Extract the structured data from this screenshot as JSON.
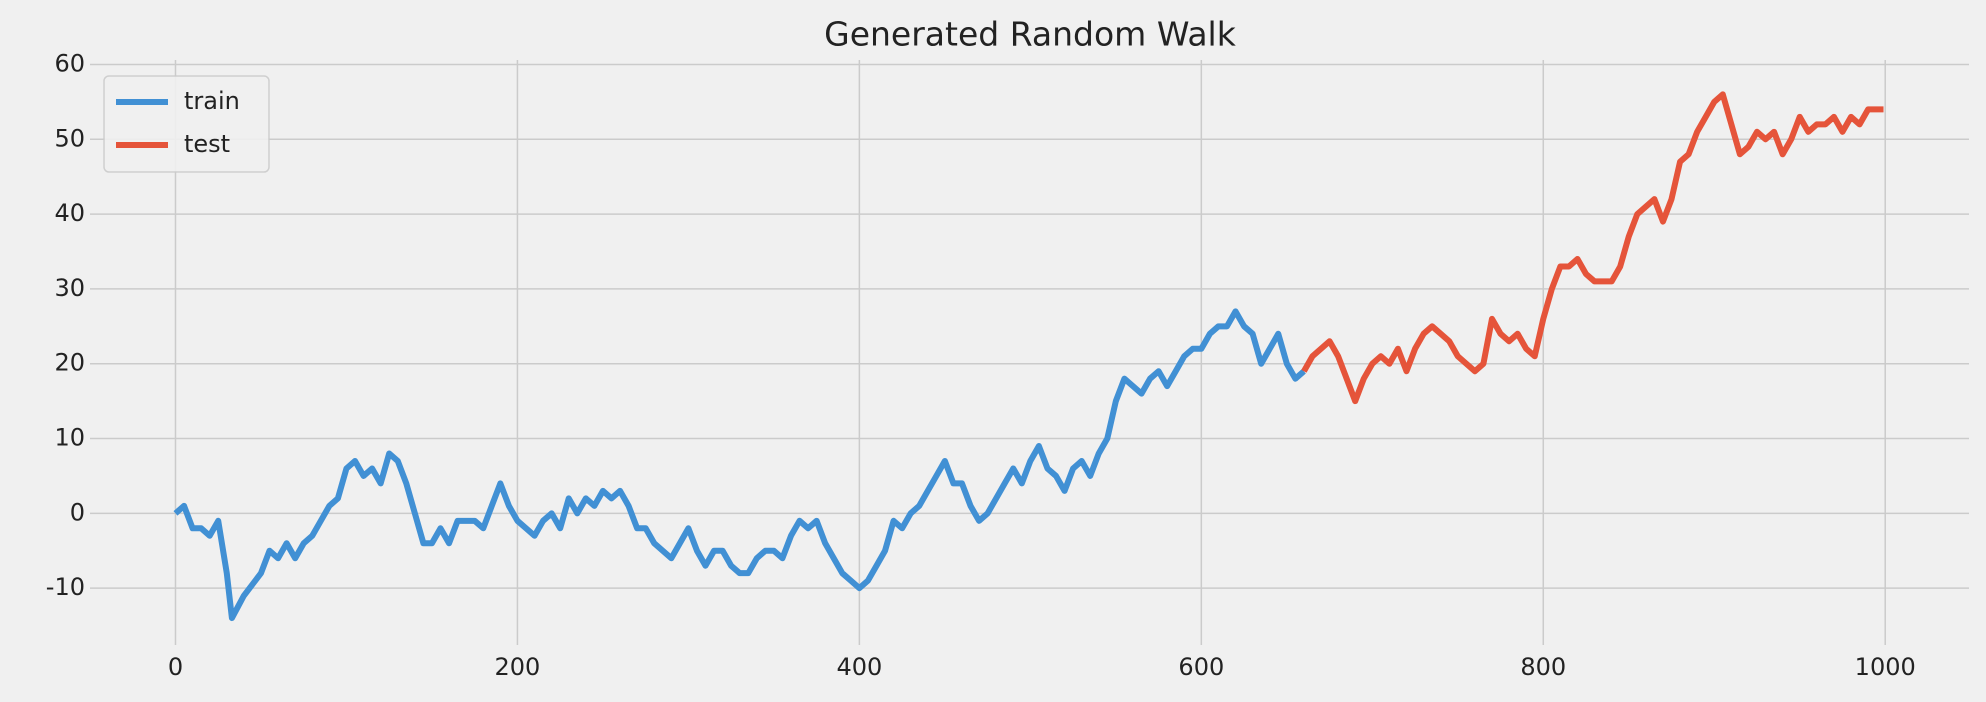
{
  "chart_data": {
    "type": "line",
    "title": "Generated Random Walk",
    "xlim": [
      -50,
      1049
    ],
    "xticks": [
      0,
      200,
      400,
      600,
      800,
      1000
    ],
    "ylim": [
      -17.6,
      60.6
    ],
    "yticks": [
      -10,
      0,
      10,
      20,
      30,
      40,
      50,
      60
    ],
    "grid": true,
    "legend": "upper left",
    "series": [
      {
        "name": "train",
        "color": "#4190d4",
        "x": [
          0,
          5,
          10,
          15,
          20,
          25,
          30,
          33,
          40,
          50,
          55,
          60,
          65,
          70,
          75,
          80,
          85,
          90,
          95,
          100,
          105,
          110,
          115,
          120,
          125,
          130,
          135,
          140,
          145,
          150,
          155,
          160,
          165,
          170,
          175,
          180,
          185,
          190,
          195,
          200,
          205,
          210,
          215,
          220,
          225,
          230,
          235,
          240,
          245,
          250,
          255,
          260,
          265,
          270,
          275,
          280,
          285,
          290,
          295,
          300,
          305,
          310,
          315,
          320,
          325,
          330,
          335,
          340,
          345,
          350,
          355,
          360,
          365,
          370,
          375,
          380,
          385,
          390,
          395,
          400,
          405,
          410,
          415,
          420,
          425,
          430,
          435,
          440,
          445,
          450,
          455,
          460,
          465,
          470,
          475,
          480,
          485,
          490,
          495,
          500,
          505,
          510,
          515,
          520,
          525,
          530,
          535,
          540,
          545,
          550,
          555,
          560,
          565,
          570,
          575,
          580,
          585,
          590,
          595,
          600,
          605,
          610,
          615,
          620,
          625,
          630,
          635,
          640,
          645,
          650,
          655,
          660
        ],
        "values": [
          0,
          1,
          -2,
          -2,
          -3,
          -1,
          -8,
          -14,
          -11,
          -8,
          -5,
          -6,
          -4,
          -6,
          -4,
          -3,
          -1,
          1,
          2,
          6,
          7,
          5,
          6,
          4,
          8,
          7,
          4,
          0,
          -4,
          -4,
          -2,
          -4,
          -1,
          -1,
          -1,
          -2,
          1,
          4,
          1,
          -1,
          -2,
          -3,
          -1,
          0,
          -2,
          2,
          0,
          2,
          1,
          3,
          2,
          3,
          1,
          -2,
          -2,
          -4,
          -5,
          -6,
          -4,
          -2,
          -5,
          -7,
          -5,
          -5,
          -7,
          -8,
          -8,
          -6,
          -5,
          -5,
          -6,
          -3,
          -1,
          -2,
          -1,
          -4,
          -6,
          -8,
          -9,
          -10,
          -9,
          -7,
          -5,
          -1,
          -2,
          0,
          1,
          3,
          5,
          7,
          4,
          4,
          1,
          -1,
          0,
          2,
          4,
          6,
          4,
          7,
          9,
          6,
          5,
          3,
          6,
          7,
          5,
          8,
          10,
          15,
          18,
          17,
          16,
          18,
          19,
          17,
          19,
          21,
          22,
          22,
          24,
          25,
          25,
          27,
          25,
          24,
          20,
          22,
          24,
          20,
          18,
          19
        ]
      },
      {
        "name": "test",
        "color": "#e5543a",
        "x": [
          660,
          665,
          670,
          675,
          680,
          685,
          690,
          695,
          700,
          705,
          710,
          715,
          720,
          725,
          730,
          735,
          740,
          745,
          750,
          755,
          760,
          765,
          770,
          775,
          780,
          785,
          790,
          795,
          800,
          805,
          810,
          815,
          820,
          825,
          830,
          835,
          840,
          845,
          850,
          855,
          860,
          865,
          870,
          875,
          880,
          885,
          890,
          895,
          900,
          905,
          910,
          915,
          920,
          925,
          930,
          935,
          940,
          945,
          950,
          955,
          960,
          965,
          970,
          975,
          980,
          985,
          990,
          995,
          999
        ],
        "values": [
          19,
          21,
          22,
          23,
          21,
          18,
          15,
          18,
          20,
          21,
          20,
          22,
          19,
          22,
          24,
          25,
          24,
          23,
          21,
          20,
          19,
          20,
          26,
          24,
          23,
          24,
          22,
          21,
          26,
          30,
          33,
          33,
          34,
          32,
          31,
          31,
          31,
          33,
          37,
          40,
          41,
          42,
          39,
          42,
          47,
          48,
          51,
          53,
          55,
          56,
          52,
          48,
          49,
          51,
          50,
          51,
          48,
          50,
          53,
          51,
          52,
          52,
          53,
          51,
          53,
          52,
          54,
          54,
          54
        ]
      }
    ]
  }
}
